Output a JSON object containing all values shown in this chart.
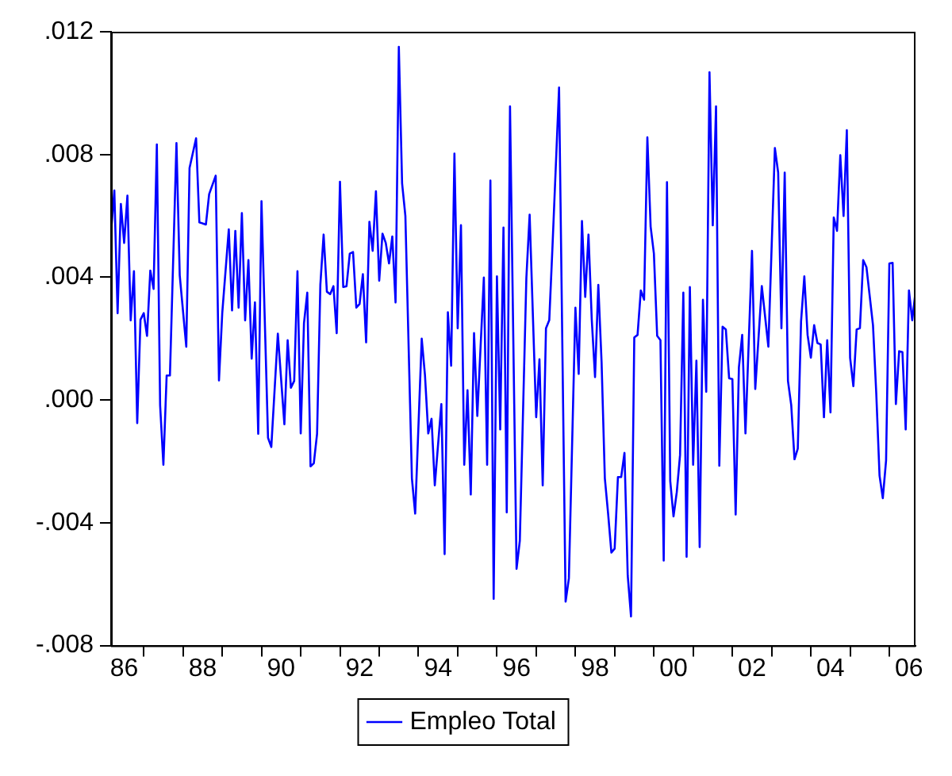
{
  "chart_data": {
    "type": "line",
    "legend": "bottom",
    "grid": false,
    "marker": "none",
    "line_style": "solid",
    "xlim": [
      "1986-03",
      "2006-09"
    ],
    "xticks": [
      {
        "value": "1986-07",
        "label": "86"
      },
      {
        "value": "1987",
        "label": null
      },
      {
        "value": "1988",
        "label": null
      },
      {
        "value": "1988-07",
        "label": "88"
      },
      {
        "value": "1989",
        "label": null
      },
      {
        "value": "1990",
        "label": null
      },
      {
        "value": "1990-07",
        "label": "90"
      },
      {
        "value": "1991",
        "label": null
      },
      {
        "value": "1992",
        "label": null
      },
      {
        "value": "1992-07",
        "label": "92"
      },
      {
        "value": "1993",
        "label": null
      },
      {
        "value": "1994",
        "label": null
      },
      {
        "value": "1994-07",
        "label": "94"
      },
      {
        "value": "1995",
        "label": null
      },
      {
        "value": "1996",
        "label": null
      },
      {
        "value": "1996-07",
        "label": "96"
      },
      {
        "value": "1997",
        "label": null
      },
      {
        "value": "1998",
        "label": null
      },
      {
        "value": "1998-07",
        "label": "98"
      },
      {
        "value": "1999",
        "label": null
      },
      {
        "value": "2000",
        "label": null
      },
      {
        "value": "2000-07",
        "label": "00"
      },
      {
        "value": "2001",
        "label": null
      },
      {
        "value": "2002",
        "label": null
      },
      {
        "value": "2002-07",
        "label": "02"
      },
      {
        "value": "2003",
        "label": null
      },
      {
        "value": "2004",
        "label": null
      },
      {
        "value": "2004-07",
        "label": "04"
      },
      {
        "value": "2005",
        "label": null
      },
      {
        "value": "2006",
        "label": null
      },
      {
        "value": "2006-07",
        "label": "06"
      }
    ],
    "ylim": [
      -0.008,
      0.012
    ],
    "yticks": [
      {
        "value": -0.008,
        "label": "-.008"
      },
      {
        "value": -0.004,
        "label": "-.004"
      },
      {
        "value": 0,
        "label": ".000"
      },
      {
        "value": 0.004,
        "label": ".004"
      },
      {
        "value": 0.008,
        "label": ".008"
      },
      {
        "value": 0.012,
        "label": ".012"
      }
    ],
    "series": [
      {
        "name": "Empleo Total",
        "color": "#0000ff",
        "x": [
          "1986-03",
          "1986-04",
          "1986-05",
          "1986-06",
          "1986-07",
          "1986-08",
          "1986-09",
          "1986-10",
          "1986-11",
          "1986-12",
          "1987-01",
          "1987-02",
          "1987-03",
          "1987-04",
          "1987-05",
          "1987-06",
          "1987-07",
          "1987-08",
          "1987-09",
          "1987-11",
          "1987-12",
          "1988-02",
          "1988-03",
          "1988-05",
          "1988-06",
          "1988-08",
          "1988-09",
          "1988-11",
          "1988-12",
          "1989-01",
          "1989-03",
          "1989-04",
          "1989-05",
          "1989-06",
          "1989-07",
          "1989-08",
          "1989-09",
          "1989-10",
          "1989-11",
          "1989-12",
          "1990-01",
          "1990-03",
          "1990-04",
          "1990-06",
          "1990-08",
          "1990-09",
          "1990-10",
          "1990-11",
          "1990-12",
          "1991-01",
          "1991-02",
          "1991-03",
          "1991-04",
          "1991-05",
          "1991-06",
          "1991-07",
          "1991-08",
          "1991-09",
          "1991-10",
          "1991-11",
          "1991-12",
          "1992-01",
          "1992-02",
          "1992-03",
          "1992-04",
          "1992-05",
          "1992-06",
          "1992-07",
          "1992-08",
          "1992-09",
          "1992-10",
          "1992-11",
          "1992-12",
          "1993-01",
          "1993-02",
          "1993-03",
          "1993-04",
          "1993-05",
          "1993-06",
          "1993-07",
          "1993-08",
          "1993-09",
          "1993-11",
          "1993-12",
          "1994-02",
          "1994-03",
          "1994-04",
          "1994-05",
          "1994-06",
          "1994-08",
          "1994-09",
          "1994-10",
          "1994-11",
          "1994-12",
          "1995-01",
          "1995-02",
          "1995-03",
          "1995-04",
          "1995-05",
          "1995-06",
          "1995-07",
          "1995-09",
          "1995-10",
          "1995-11",
          "1995-12",
          "1996-01",
          "1996-02",
          "1996-03",
          "1996-04",
          "1996-05",
          "1996-07",
          "1996-08",
          "1996-10",
          "1996-11",
          "1997-01",
          "1997-02",
          "1997-03",
          "1997-04",
          "1997-05",
          "1997-06",
          "1997-08",
          "1997-10",
          "1997-11",
          "1998-01",
          "1998-02",
          "1998-03",
          "1998-04",
          "1998-05",
          "1998-06",
          "1998-07",
          "1998-08",
          "1998-09",
          "1998-10",
          "1998-11",
          "1998-12",
          "1999-01",
          "1999-02",
          "1999-03",
          "1999-04",
          "1999-05",
          "1999-06",
          "1999-07",
          "1999-08",
          "1999-09",
          "1999-10",
          "1999-11",
          "1999-12",
          "2000-01",
          "2000-02",
          "2000-03",
          "2000-04",
          "2000-05",
          "2000-06",
          "2000-07",
          "2000-08",
          "2000-09",
          "2000-10",
          "2000-11",
          "2000-12",
          "2001-01",
          "2001-02",
          "2001-03",
          "2001-04",
          "2001-05",
          "2001-06",
          "2001-07",
          "2001-08",
          "2001-09",
          "2001-10",
          "2001-11",
          "2001-12",
          "2002-01",
          "2002-02",
          "2002-03",
          "2002-04",
          "2002-05",
          "2002-07",
          "2002-08",
          "2002-10",
          "2002-12",
          "2003-02",
          "2003-03",
          "2003-04",
          "2003-05",
          "2003-06",
          "2003-07",
          "2003-08",
          "2003-09",
          "2003-10",
          "2003-11",
          "2003-12",
          "2004-01",
          "2004-02",
          "2004-03",
          "2004-04",
          "2004-05",
          "2004-06",
          "2004-07",
          "2004-08",
          "2004-09",
          "2004-10",
          "2004-11",
          "2004-12",
          "2005-01",
          "2005-02",
          "2005-03",
          "2005-04",
          "2005-05",
          "2005-06",
          "2005-08",
          "2005-09",
          "2005-10",
          "2005-11",
          "2005-12",
          "2006-01",
          "2006-02",
          "2006-03",
          "2006-04",
          "2006-05",
          "2006-06",
          "2006-07",
          "2006-08",
          "2006-09"
        ],
        "values": [
          0.00547,
          0.00683,
          0.00283,
          0.00639,
          0.00512,
          0.00666,
          0.0026,
          0.0042,
          -0.00075,
          0.00262,
          0.00283,
          0.00209,
          0.00422,
          0.00362,
          0.00833,
          -0.00017,
          -0.00211,
          0.0008,
          0.0008,
          0.00837,
          0.00406,
          0.00174,
          0.00756,
          0.00853,
          0.00579,
          0.00572,
          0.00671,
          0.00731,
          0.00064,
          0.00283,
          0.00556,
          0.00292,
          0.00551,
          0.00301,
          0.00609,
          0.0026,
          0.00456,
          0.00135,
          0.00318,
          -0.0011,
          0.00648,
          -0.00123,
          -0.00153,
          0.00216,
          -0.00079,
          0.00195,
          0.0004,
          0.00062,
          0.0042,
          -0.00109,
          0.00251,
          0.0035,
          -0.00216,
          -0.00206,
          -0.0011,
          0.00376,
          0.00539,
          0.00353,
          0.00345,
          0.00371,
          0.00218,
          0.00711,
          0.00368,
          0.00371,
          0.00477,
          0.00482,
          0.00301,
          0.00313,
          0.0041,
          0.00188,
          0.00581,
          0.00486,
          0.0068,
          0.00389,
          0.00542,
          0.00512,
          0.00445,
          0.00533,
          0.00318,
          0.01151,
          0.00706,
          0.006,
          -0.00255,
          -0.0037,
          0.002,
          0.0008,
          -0.00109,
          -0.00061,
          -0.00278,
          -0.00013,
          -0.00502,
          0.00286,
          0.00112,
          0.00803,
          0.00234,
          0.0057,
          -0.00211,
          0.00032,
          -0.00308,
          0.00218,
          -0.00052,
          0.00399,
          -0.00211,
          0.00715,
          -0.00648,
          0.00403,
          -0.00096,
          0.00562,
          -0.00366,
          0.00957,
          -0.0055,
          -0.00458,
          0.00398,
          0.00604,
          -0.00056,
          0.00133,
          -0.00278,
          0.00234,
          0.0026,
          0.00503,
          0.01018,
          -0.00657,
          -0.00581,
          0.00301,
          0.00085,
          0.00583,
          0.00336,
          0.00539,
          0.00262,
          0.00075,
          0.00375,
          0.00124,
          -0.00255,
          -0.0037,
          -0.00497,
          -0.00484,
          -0.00251,
          -0.00251,
          -0.00172,
          -0.00572,
          -0.00705,
          0.00204,
          0.00212,
          0.00357,
          0.00327,
          0.00856,
          0.00565,
          0.00477,
          0.00209,
          0.00195,
          -0.00523,
          0.0071,
          -0.00264,
          -0.00379,
          -0.003,
          -0.00179,
          0.0035,
          -0.00511,
          0.00368,
          -0.00211,
          0.00128,
          -0.00479,
          0.00327,
          0.00027,
          0.01068,
          0.00569,
          0.00957,
          -0.00214,
          0.00239,
          0.0023,
          0.00071,
          0.00068,
          -0.00373,
          0.00107,
          0.00212,
          -0.00109,
          0.00486,
          0.00036,
          0.00371,
          0.00174,
          0.00821,
          0.00741,
          0.00234,
          0.00741,
          0.00062,
          -0.00017,
          -0.00193,
          -0.00158,
          0.00256,
          0.00403,
          0.00212,
          0.00138,
          0.00244,
          0.00186,
          0.00181,
          -0.00056,
          0.00195,
          -0.0004,
          0.00595,
          0.00551,
          0.00798,
          0.006,
          0.00879,
          0.00138,
          0.00045,
          0.0023,
          0.00234,
          0.00456,
          0.00433,
          0.00244,
          0.00022,
          -0.00246,
          -0.0032,
          -0.00197,
          0.00445,
          0.00447,
          -0.00013,
          0.00159,
          0.00156,
          -0.00096,
          0.00357,
          0.0026,
          0.00353
        ]
      }
    ]
  }
}
